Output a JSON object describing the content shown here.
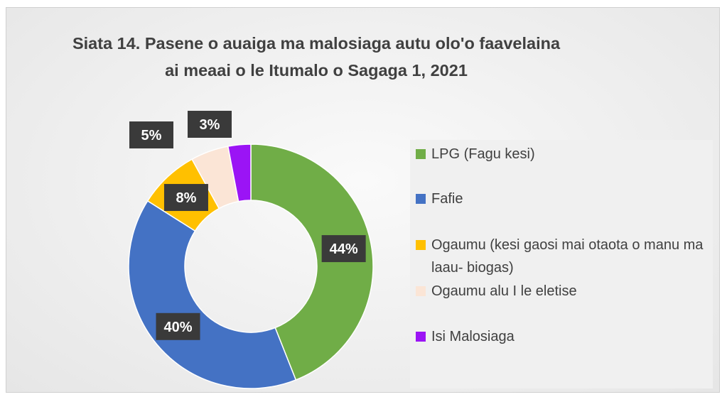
{
  "chart_data": {
    "type": "donut",
    "title": "Siata 14. Pasene o auaiga ma malosiaga autu olo'o faavelaina ai meaai o le Itumalo o Sagaga 1, 2021",
    "categories": [
      "LPG (Fagu kesi)",
      "Fafie",
      "Ogaumu (kesi gaosi mai otaota o manu ma laau- biogas)",
      "Ogaumu alu I le eletise",
      "Isi Malosiaga"
    ],
    "values": [
      44,
      40,
      8,
      5,
      3
    ],
    "value_labels": [
      "44%",
      "40%",
      "8%",
      "5%",
      "3%"
    ],
    "colors": [
      "#70ad47",
      "#4472c4",
      "#ffc000",
      "#fbe5d6",
      "#9b14f5"
    ],
    "legend": "right"
  }
}
